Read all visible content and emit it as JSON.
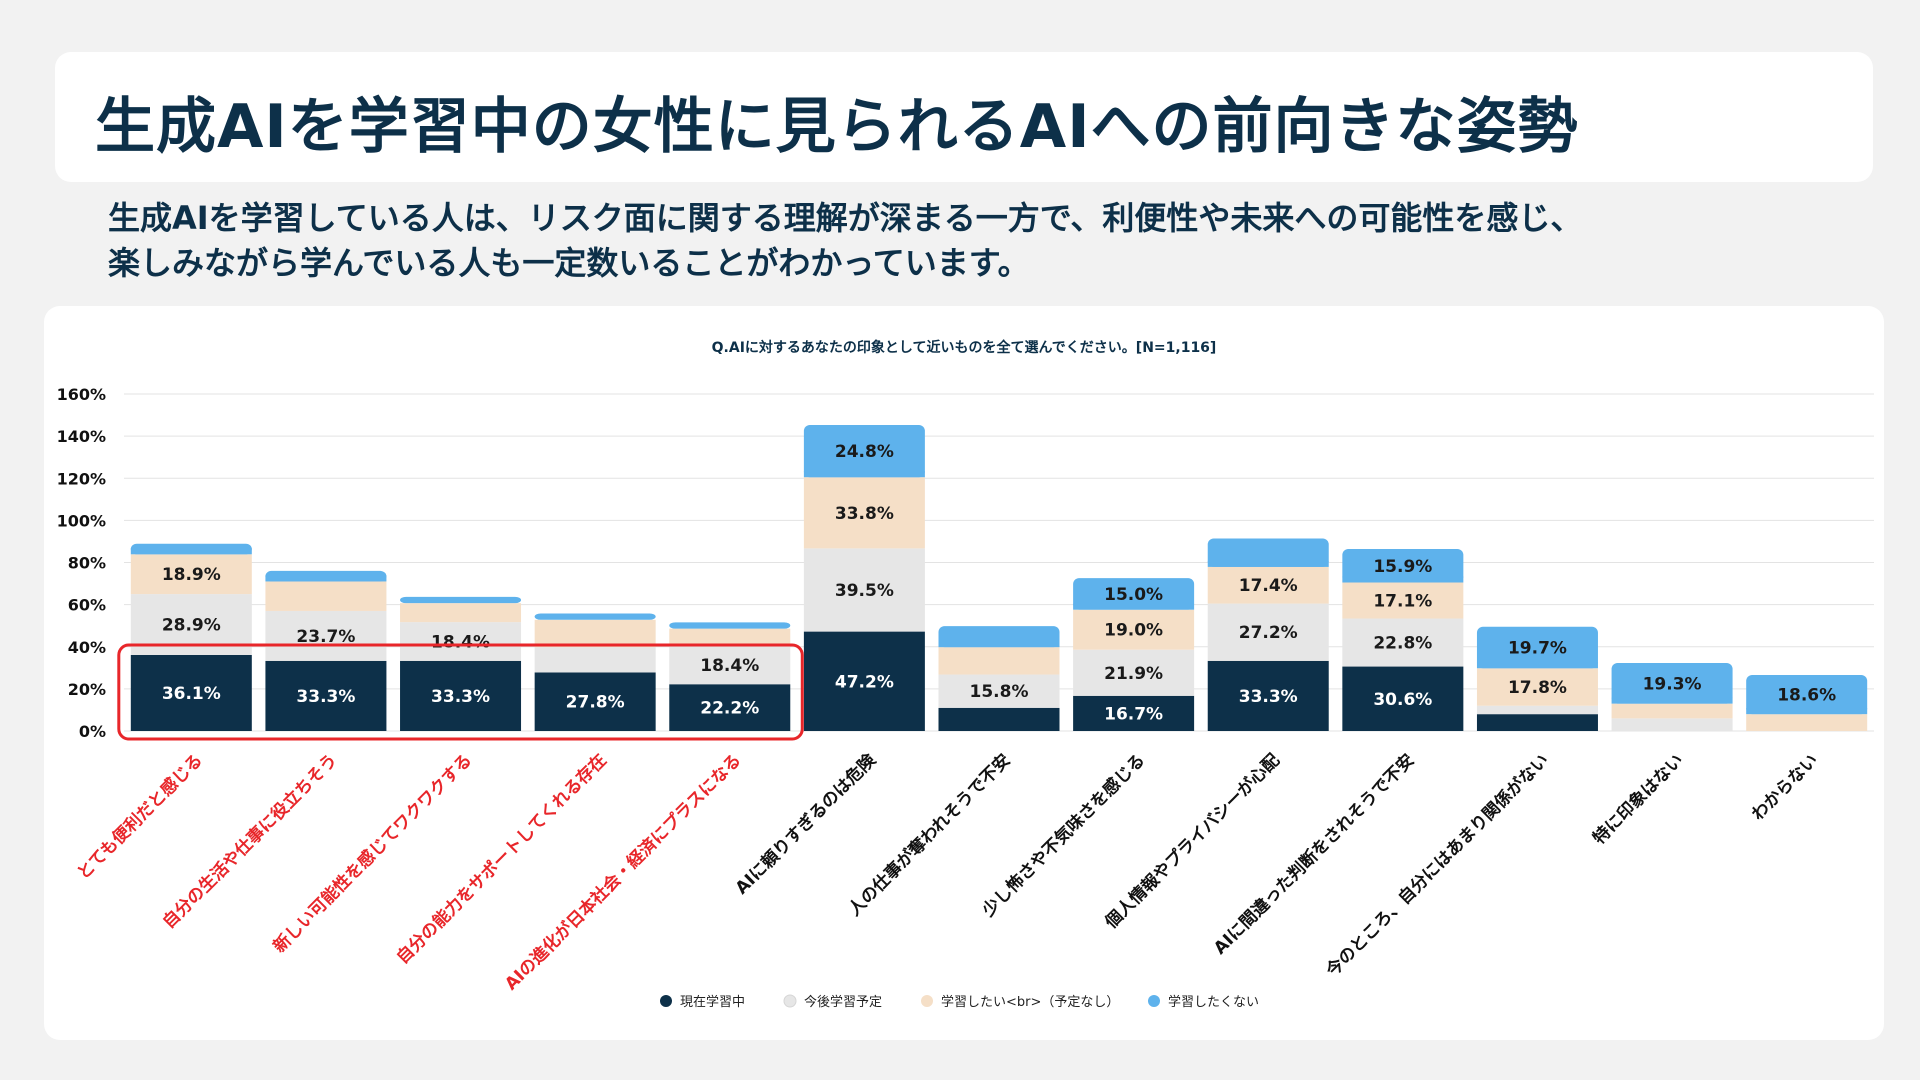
{
  "page": {
    "title": "生成AIを学習中の女性に見られるAIへの前向きな姿勢",
    "lead_line1": "生成AIを学習している人は、リスク面に関する理解が深まる一方で、利便性や未来への可能性を感じ、",
    "lead_line2": "楽しみながら学んでいる人も一定数いることがわかっています。"
  },
  "chart_data": {
    "type": "bar",
    "stacked": true,
    "title": "Q.AIに対するあなたの印象として近いものを全て選んでください。[N=1,116]",
    "xlabel": "",
    "ylabel": "",
    "ylim": [
      0,
      160
    ],
    "yticks": [
      "0%",
      "20%",
      "40%",
      "60%",
      "80%",
      "100%",
      "120%",
      "140%",
      "160%"
    ],
    "grid": true,
    "legend_position": "bottom",
    "categories": [
      "とても便利だと感じる",
      "自分の生活や仕事に役立ちそう",
      "新しい可能性を感じてワクワクする",
      "自分の能力をサポートしてくれる存在",
      "AIの進化が日本社会・経済にプラスになる",
      "AIに頼りすぎるのは危険",
      "人の仕事が奪われそうで不安",
      "少し怖さや不気味さを感じる",
      "個人情報やプライバシーが心配",
      "AIに間違った判断をされそうで不安",
      "今のところ、自分にはあまり関係がない",
      "特に印象はない",
      "わからない"
    ],
    "highlighted_categories": [
      0,
      1,
      2,
      3,
      4
    ],
    "highlight_color": "#e8262a",
    "series": [
      {
        "name": "現在学習中",
        "color": "#0d3049",
        "label_color": "#ffffff",
        "values": [
          36.1,
          33.3,
          33.3,
          27.8,
          22.2,
          47.2,
          11,
          16.7,
          33.3,
          30.6,
          8,
          0,
          0
        ],
        "labels": [
          "36.1%",
          "33.3%",
          "33.3%",
          "27.8%",
          "22.2%",
          "47.2%",
          "",
          "16.7%",
          "33.3%",
          "30.6%",
          "",
          "",
          ""
        ]
      },
      {
        "name": "今後学習予定",
        "color": "#e6e6e6",
        "label_color": "#1a1a1a",
        "values": [
          28.9,
          23.7,
          18.4,
          12,
          18.4,
          39.5,
          15.8,
          21.9,
          27.2,
          22.8,
          4,
          6,
          0
        ],
        "labels": [
          "28.9%",
          "23.7%",
          "18.4%",
          "",
          "18.4%",
          "39.5%",
          "15.8%",
          "21.9%",
          "27.2%",
          "22.8%",
          "",
          "",
          ""
        ]
      },
      {
        "name": "学習したい<br>（予定なし）",
        "color": "#f5dfc7",
        "label_color": "#1a1a1a",
        "values": [
          18.9,
          14,
          9,
          13,
          8,
          33.8,
          13,
          19.0,
          17.4,
          17.1,
          17.8,
          7,
          8
        ],
        "labels": [
          "18.9%",
          "",
          "",
          "",
          "",
          "33.8%",
          "",
          "19.0%",
          "17.4%",
          "17.1%",
          "17.8%",
          "",
          ""
        ]
      },
      {
        "name": "学習したくない",
        "color": "#5eb2ec",
        "label_color": "#1a1a1a",
        "values": [
          5,
          5,
          3,
          3,
          3,
          24.8,
          10,
          15.0,
          13.5,
          15.9,
          19.7,
          19.3,
          18.6
        ],
        "labels": [
          "",
          "",
          "",
          "",
          "",
          "24.8%",
          "",
          "15.0%",
          "",
          "15.9%",
          "19.7%",
          "19.3%",
          "18.6%"
        ]
      }
    ]
  }
}
